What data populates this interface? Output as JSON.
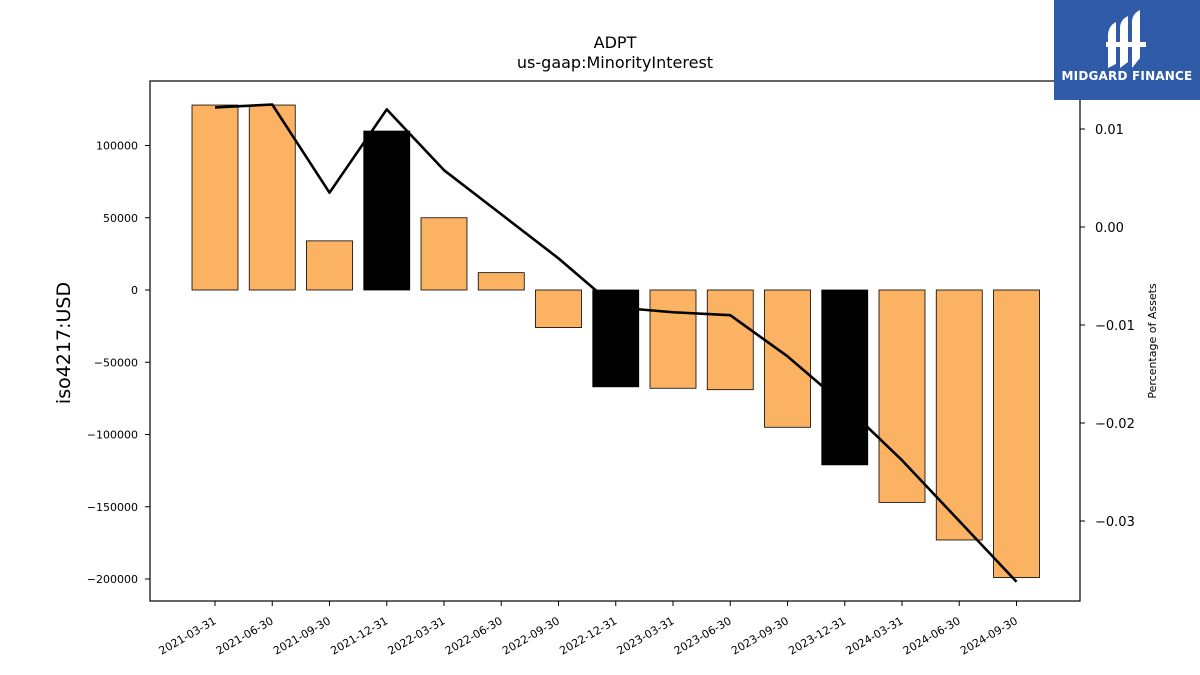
{
  "logo": {
    "text": "MIDGARD FINANCE"
  },
  "chart_data": {
    "type": "bar",
    "title": "ADPT",
    "subtitle": "us-gaap:MinorityInterest",
    "ylabel": "iso4217:USD",
    "y2label": "Percentage of Assets",
    "categories": [
      "2021-03-31",
      "2021-06-30",
      "2021-09-30",
      "2021-12-31",
      "2022-03-31",
      "2022-06-30",
      "2022-09-30",
      "2022-12-31",
      "2023-03-31",
      "2023-06-30",
      "2023-09-30",
      "2023-12-31",
      "2024-03-31",
      "2024-06-30",
      "2024-09-30"
    ],
    "values": [
      128000,
      128000,
      34000,
      110000,
      50000,
      12000,
      -26000,
      -67000,
      -68000,
      -69000,
      -95000,
      -121000,
      -147000,
      -173000,
      -199000
    ],
    "highlight_color": "#000000",
    "bar_color": "#fbb262",
    "highlighted_categories": [
      "2021-12-31",
      "2022-12-31",
      "2023-12-31"
    ],
    "ylim": [
      -215000,
      150000
    ],
    "yticks": [
      -200000,
      -150000,
      -100000,
      -50000,
      0,
      50000,
      100000
    ],
    "line_series": {
      "name": "Percentage of Assets",
      "values": [
        0.0122,
        0.0125,
        0.0035,
        0.012,
        0.0058,
        0.0013,
        -0.0032,
        -0.0082,
        -0.0087,
        -0.009,
        -0.0132,
        -0.0182,
        -0.0238,
        -0.03,
        -0.0362
      ],
      "ylim": [
        -0.0385,
        0.015
      ],
      "yticks": [
        -0.03,
        -0.02,
        -0.01,
        0.0,
        0.01
      ],
      "ytick_labels": [
        "−0.03",
        "−0.02",
        "−0.01",
        "0.00",
        "0.01"
      ]
    },
    "ytick_labels": [
      "−200000",
      "−150000",
      "−100000",
      "−50000",
      "0",
      "50000",
      "100000"
    ],
    "grid": false
  }
}
